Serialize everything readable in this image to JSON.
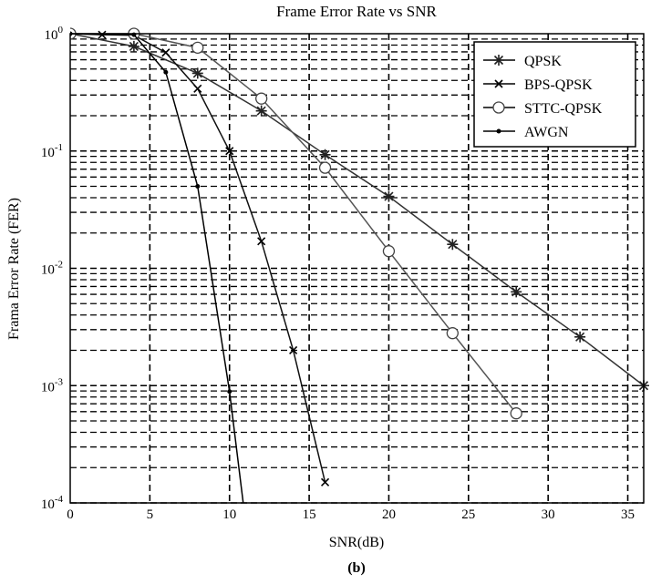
{
  "chart_data": {
    "type": "line",
    "title": "Frame Error Rate vs SNR",
    "xlabel": "SNR(dB)",
    "ylabel": "Frama Error Rate (FER)",
    "caption": "(b)",
    "xlim": [
      0,
      36
    ],
    "ylim": [
      0.0001,
      1
    ],
    "yscale": "log",
    "grid": true,
    "legend_position": "top-right",
    "xticks": [
      "0",
      "5",
      "10",
      "15",
      "20",
      "25",
      "30",
      "35"
    ],
    "xtick_values": [
      0,
      5,
      10,
      15,
      20,
      25,
      30,
      35
    ],
    "yticks": [
      {
        "base": "10",
        "exp": "0",
        "v": 1
      },
      {
        "base": "10",
        "exp": "-1",
        "v": 0.1
      },
      {
        "base": "10",
        "exp": "-2",
        "v": 0.01
      },
      {
        "base": "10",
        "exp": "-3",
        "v": 0.001
      },
      {
        "base": "10",
        "exp": "-4",
        "v": 0.0001
      }
    ],
    "series": [
      {
        "name": "QPSK",
        "marker": "asterisk",
        "x": [
          0,
          4,
          8,
          12,
          16,
          20,
          24,
          28,
          32,
          36
        ],
        "y": [
          1,
          0.78,
          0.46,
          0.22,
          0.093,
          0.041,
          0.016,
          0.0063,
          0.0026,
          0.001
        ]
      },
      {
        "name": "BPS-QPSK",
        "marker": "x",
        "x": [
          0,
          2,
          4,
          6,
          8,
          10,
          12,
          14,
          16
        ],
        "y": [
          1,
          0.98,
          0.97,
          0.69,
          0.34,
          0.1,
          0.017,
          0.002,
          0.00015
        ]
      },
      {
        "name": "STTC-QPSK",
        "marker": "circle",
        "x": [
          0,
          4,
          8,
          12,
          16,
          20,
          24,
          28
        ],
        "y": [
          1,
          1,
          0.76,
          0.28,
          0.072,
          0.014,
          0.0028,
          0.00058
        ]
      },
      {
        "name": "AWGN",
        "marker": "dot",
        "x": [
          0,
          4,
          6,
          8,
          10,
          11
        ],
        "y": [
          1,
          0.98,
          0.47,
          0.05,
          0.00089,
          7e-05
        ]
      }
    ]
  }
}
